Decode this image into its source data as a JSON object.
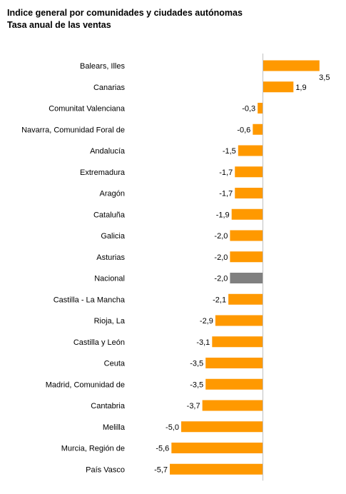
{
  "chart_data": {
    "type": "bar",
    "orientation": "horizontal",
    "title": "Indice general por comunidades y ciudades autónomas",
    "subtitle": "Tasa anual de las ventas",
    "categories": [
      "Balears, Illes",
      "Canarias",
      "Comunitat Valenciana",
      "Navarra, Comunidad Foral de",
      "Andalucía",
      "Extremadura",
      "Aragón",
      "Cataluña",
      "Galicia",
      "Asturias",
      "Nacional",
      "Castilla - La Mancha",
      "Rioja, La",
      "Castilla y León",
      "Ceuta",
      "Madrid, Comunidad de",
      "Cantabria",
      "Melilla",
      "Murcia, Región de",
      "País Vasco"
    ],
    "values": [
      3.5,
      1.9,
      -0.3,
      -0.6,
      -1.5,
      -1.7,
      -1.7,
      -1.9,
      -2.0,
      -2.0,
      -2.0,
      -2.1,
      -2.9,
      -3.1,
      -3.5,
      -3.5,
      -3.7,
      -5.0,
      -5.6,
      -5.7
    ],
    "value_labels": [
      "3,5",
      "1,9",
      "-0,3",
      "-0,6",
      "-1,5",
      "-1,7",
      "-1,7",
      "-1,9",
      "-2,0",
      "-2,0",
      "-2,0",
      "-2,1",
      "-2,9",
      "-3,1",
      "-3,5",
      "-3,5",
      "-3,7",
      "-5,0",
      "-5,6",
      "-5,7"
    ],
    "highlight_category": "Nacional",
    "xlim": [
      -5.7,
      3.5
    ],
    "grid": false,
    "colors": {
      "bar": "#FF9900",
      "highlight": "#808080",
      "axis": "#C0C0C0"
    }
  }
}
